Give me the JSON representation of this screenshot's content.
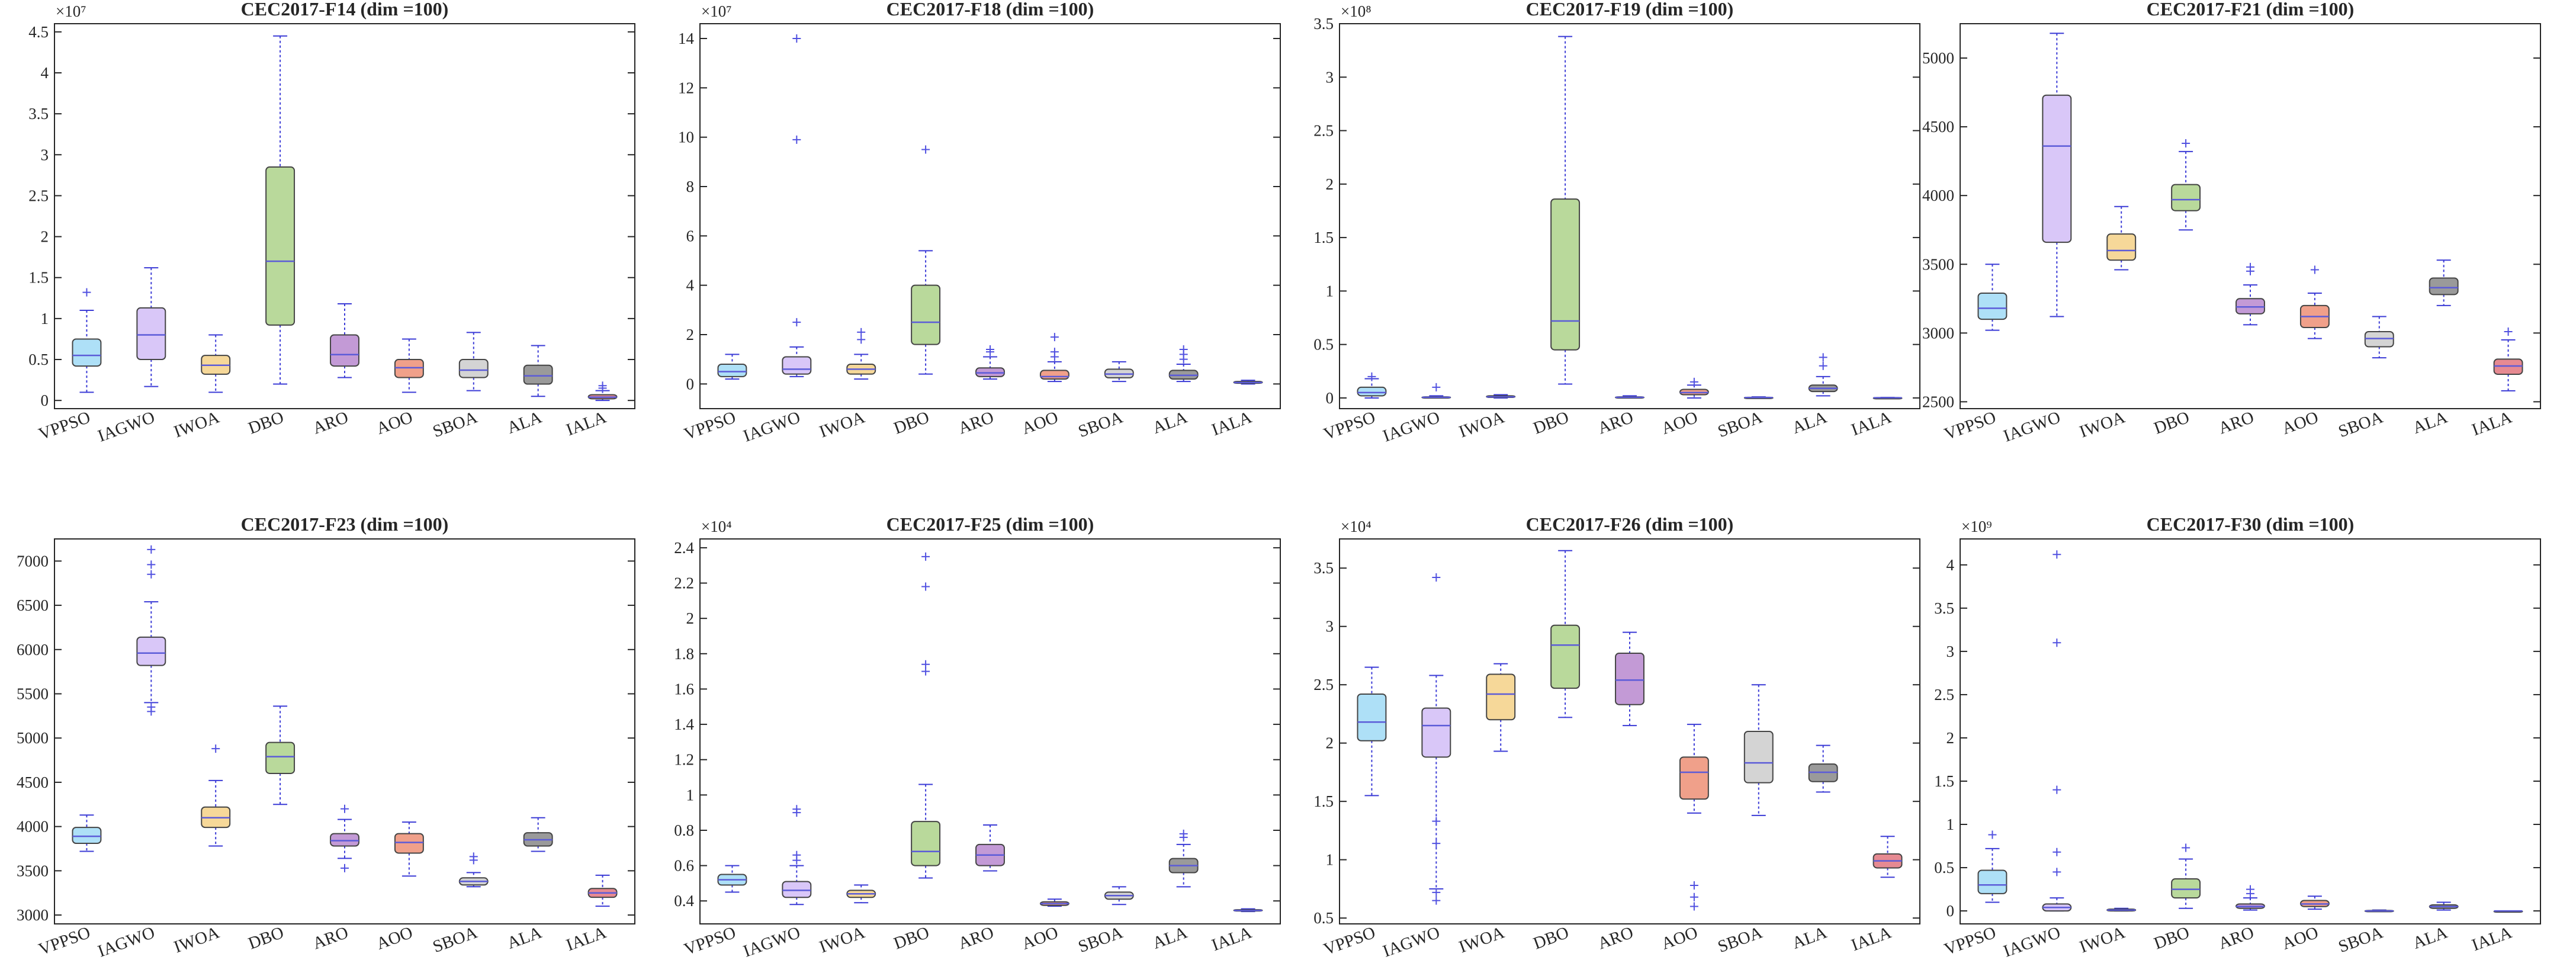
{
  "colors": {
    "VPPSO": "#aee0f7",
    "IAGWO": "#d9c7f8",
    "IWOA": "#f6d899",
    "DBO": "#b9d99b",
    "ARO": "#c39ad6",
    "AOO": "#f0a08a",
    "SBOA": "#d4d4d4",
    "ALA": "#9a9a9a",
    "IALA": "#e68a92"
  },
  "chart_data": [
    {
      "type": "box",
      "title": "CEC2017-F14 (dim =100)",
      "exponent": "×10⁷",
      "ylim": [
        -0.1,
        4.6
      ],
      "yticks": [
        0,
        0.5,
        1,
        1.5,
        2,
        2.5,
        3,
        3.5,
        4,
        4.5
      ],
      "ytick_labels": [
        "0",
        "0.5",
        "1",
        "1.5",
        "2",
        "2.5",
        "3",
        "3.5",
        "4",
        "4.5"
      ],
      "categories": [
        "VPPSO",
        "IAGWO",
        "IWOA",
        "DBO",
        "ARO",
        "AOO",
        "SBOA",
        "ALA",
        "IALA"
      ],
      "boxes": [
        {
          "min": 0.1,
          "q1": 0.42,
          "median": 0.55,
          "q3": 0.75,
          "max": 1.1,
          "outliers": [
            1.32
          ]
        },
        {
          "min": 0.17,
          "q1": 0.5,
          "median": 0.8,
          "q3": 1.13,
          "max": 1.62,
          "outliers": []
        },
        {
          "min": 0.1,
          "q1": 0.32,
          "median": 0.43,
          "q3": 0.55,
          "max": 0.8,
          "outliers": []
        },
        {
          "min": 0.2,
          "q1": 0.92,
          "median": 1.7,
          "q3": 2.85,
          "max": 4.45,
          "outliers": []
        },
        {
          "min": 0.28,
          "q1": 0.42,
          "median": 0.56,
          "q3": 0.8,
          "max": 1.18,
          "outliers": []
        },
        {
          "min": 0.1,
          "q1": 0.28,
          "median": 0.4,
          "q3": 0.5,
          "max": 0.75,
          "outliers": []
        },
        {
          "min": 0.12,
          "q1": 0.28,
          "median": 0.37,
          "q3": 0.5,
          "max": 0.83,
          "outliers": []
        },
        {
          "min": 0.05,
          "q1": 0.2,
          "median": 0.3,
          "q3": 0.43,
          "max": 0.67,
          "outliers": []
        },
        {
          "min": 0.0,
          "q1": 0.02,
          "median": 0.04,
          "q3": 0.07,
          "max": 0.12,
          "outliers": [
            0.15,
            0.18
          ]
        }
      ]
    },
    {
      "type": "box",
      "title": "CEC2017-F18 (dim =100)",
      "exponent": "×10⁷",
      "ylim": [
        -1.0,
        14.6
      ],
      "yticks": [
        0,
        2,
        4,
        6,
        8,
        10,
        12,
        14
      ],
      "ytick_labels": [
        "0",
        "2",
        "4",
        "6",
        "8",
        "10",
        "12",
        "14"
      ],
      "categories": [
        "VPPSO",
        "IAGWO",
        "IWOA",
        "DBO",
        "ARO",
        "AOO",
        "SBOA",
        "ALA",
        "IALA"
      ],
      "boxes": [
        {
          "min": 0.2,
          "q1": 0.3,
          "median": 0.5,
          "q3": 0.8,
          "max": 1.2,
          "outliers": []
        },
        {
          "min": 0.3,
          "q1": 0.4,
          "median": 0.6,
          "q3": 1.1,
          "max": 1.5,
          "outliers": [
            2.5,
            9.9,
            14.0
          ]
        },
        {
          "min": 0.2,
          "q1": 0.4,
          "median": 0.6,
          "q3": 0.8,
          "max": 1.2,
          "outliers": [
            1.8,
            2.1
          ]
        },
        {
          "min": 0.4,
          "q1": 1.6,
          "median": 2.5,
          "q3": 4.0,
          "max": 5.4,
          "outliers": [
            9.5
          ]
        },
        {
          "min": 0.2,
          "q1": 0.3,
          "median": 0.45,
          "q3": 0.65,
          "max": 1.1,
          "outliers": [
            1.3,
            1.4
          ]
        },
        {
          "min": 0.1,
          "q1": 0.2,
          "median": 0.3,
          "q3": 0.55,
          "max": 0.9,
          "outliers": [
            1.1,
            1.3,
            1.9
          ]
        },
        {
          "min": 0.1,
          "q1": 0.25,
          "median": 0.4,
          "q3": 0.6,
          "max": 0.9,
          "outliers": []
        },
        {
          "min": 0.1,
          "q1": 0.2,
          "median": 0.35,
          "q3": 0.55,
          "max": 0.8,
          "outliers": [
            1.0,
            1.2,
            1.4
          ]
        },
        {
          "min": 0.0,
          "q1": 0.03,
          "median": 0.06,
          "q3": 0.1,
          "max": 0.15,
          "outliers": []
        }
      ]
    },
    {
      "type": "box",
      "title": "CEC2017-F19 (dim =100)",
      "exponent": "×10⁸",
      "ylim": [
        -0.1,
        3.5
      ],
      "yticks": [
        0,
        0.5,
        1,
        1.5,
        2,
        2.5,
        3,
        3.5
      ],
      "ytick_labels": [
        "0",
        "0.5",
        "1",
        "1.5",
        "2",
        "2.5",
        "3",
        "3.5"
      ],
      "categories": [
        "VPPSO",
        "IAGWO",
        "IWOA",
        "DBO",
        "ARO",
        "AOO",
        "SBOA",
        "ALA",
        "IALA"
      ],
      "boxes": [
        {
          "min": 0.0,
          "q1": 0.02,
          "median": 0.05,
          "q3": 0.1,
          "max": 0.18,
          "outliers": [
            0.2
          ]
        },
        {
          "min": 0.0,
          "q1": 0.003,
          "median": 0.006,
          "q3": 0.01,
          "max": 0.02,
          "outliers": [
            0.1
          ]
        },
        {
          "min": 0.0,
          "q1": 0.005,
          "median": 0.01,
          "q3": 0.02,
          "max": 0.03,
          "outliers": []
        },
        {
          "min": 0.13,
          "q1": 0.45,
          "median": 0.72,
          "q3": 1.86,
          "max": 3.38,
          "outliers": []
        },
        {
          "min": 0.0,
          "q1": 0.003,
          "median": 0.006,
          "q3": 0.01,
          "max": 0.02,
          "outliers": []
        },
        {
          "min": 0.0,
          "q1": 0.03,
          "median": 0.05,
          "q3": 0.08,
          "max": 0.12,
          "outliers": [
            0.15
          ]
        },
        {
          "min": 0.0,
          "q1": 0.002,
          "median": 0.004,
          "q3": 0.006,
          "max": 0.01,
          "outliers": []
        },
        {
          "min": 0.02,
          "q1": 0.06,
          "median": 0.09,
          "q3": 0.12,
          "max": 0.2,
          "outliers": [
            0.3,
            0.38
          ]
        },
        {
          "min": 0.0,
          "q1": 0.001,
          "median": 0.002,
          "q3": 0.003,
          "max": 0.005,
          "outliers": []
        }
      ]
    },
    {
      "type": "box",
      "title": "CEC2017-F21 (dim =100)",
      "exponent": "",
      "ylim": [
        2450,
        5250
      ],
      "yticks": [
        2500,
        3000,
        3500,
        4000,
        4500,
        5000
      ],
      "ytick_labels": [
        "2500",
        "3000",
        "3500",
        "4000",
        "4500",
        "5000"
      ],
      "categories": [
        "VPPSO",
        "IAGWO",
        "IWOA",
        "DBO",
        "ARO",
        "AOO",
        "SBOA",
        "ALA",
        "IALA"
      ],
      "boxes": [
        {
          "min": 3020,
          "q1": 3100,
          "median": 3180,
          "q3": 3290,
          "max": 3500,
          "outliers": []
        },
        {
          "min": 3120,
          "q1": 3660,
          "median": 4360,
          "q3": 4730,
          "max": 5180,
          "outliers": []
        },
        {
          "min": 3460,
          "q1": 3530,
          "median": 3600,
          "q3": 3720,
          "max": 3920,
          "outliers": []
        },
        {
          "min": 3750,
          "q1": 3890,
          "median": 3970,
          "q3": 4080,
          "max": 4320,
          "outliers": [
            4380
          ]
        },
        {
          "min": 3060,
          "q1": 3140,
          "median": 3190,
          "q3": 3250,
          "max": 3350,
          "outliers": [
            3450,
            3480
          ]
        },
        {
          "min": 2960,
          "q1": 3040,
          "median": 3120,
          "q3": 3200,
          "max": 3290,
          "outliers": [
            3460
          ]
        },
        {
          "min": 2820,
          "q1": 2900,
          "median": 2960,
          "q3": 3010,
          "max": 3120,
          "outliers": []
        },
        {
          "min": 3200,
          "q1": 3280,
          "median": 3330,
          "q3": 3400,
          "max": 3530,
          "outliers": []
        },
        {
          "min": 2580,
          "q1": 2700,
          "median": 2760,
          "q3": 2810,
          "max": 2950,
          "outliers": [
            3010
          ]
        }
      ]
    },
    {
      "type": "box",
      "title": "CEC2017-F23 (dim =100)",
      "exponent": "",
      "ylim": [
        2900,
        7250
      ],
      "yticks": [
        3000,
        3500,
        4000,
        4500,
        5000,
        5500,
        6000,
        6500,
        7000
      ],
      "ytick_labels": [
        "3000",
        "3500",
        "4000",
        "4500",
        "5000",
        "5500",
        "6000",
        "6500",
        "7000"
      ],
      "categories": [
        "VPPSO",
        "IAGWO",
        "IWOA",
        "DBO",
        "ARO",
        "AOO",
        "SBOA",
        "ALA",
        "IALA"
      ],
      "boxes": [
        {
          "min": 3720,
          "q1": 3810,
          "median": 3890,
          "q3": 3990,
          "max": 4130,
          "outliers": []
        },
        {
          "min": 5400,
          "q1": 5820,
          "median": 5960,
          "q3": 6140,
          "max": 6540,
          "outliers": [
            5300,
            5350,
            6850,
            6960,
            7130
          ]
        },
        {
          "min": 3780,
          "q1": 3990,
          "median": 4100,
          "q3": 4220,
          "max": 4520,
          "outliers": [
            4880
          ]
        },
        {
          "min": 4250,
          "q1": 4600,
          "median": 4790,
          "q3": 4950,
          "max": 5360,
          "outliers": []
        },
        {
          "min": 3640,
          "q1": 3780,
          "median": 3840,
          "q3": 3920,
          "max": 4080,
          "outliers": [
            3530,
            4200
          ]
        },
        {
          "min": 3440,
          "q1": 3700,
          "median": 3820,
          "q3": 3920,
          "max": 4050,
          "outliers": []
        },
        {
          "min": 3320,
          "q1": 3340,
          "median": 3380,
          "q3": 3420,
          "max": 3480,
          "outliers": [
            3620,
            3660
          ]
        },
        {
          "min": 3720,
          "q1": 3780,
          "median": 3850,
          "q3": 3930,
          "max": 4100,
          "outliers": []
        },
        {
          "min": 3100,
          "q1": 3200,
          "median": 3250,
          "q3": 3300,
          "max": 3450,
          "outliers": []
        }
      ]
    },
    {
      "type": "box",
      "title": "CEC2017-F25 (dim =100)",
      "exponent": "×10⁴",
      "ylim": [
        0.27,
        2.45
      ],
      "yticks": [
        0.4,
        0.6,
        0.8,
        1,
        1.2,
        1.4,
        1.6,
        1.8,
        2,
        2.2,
        2.4
      ],
      "ytick_labels": [
        "0.4",
        "0.6",
        "0.8",
        "1",
        "1.2",
        "1.4",
        "1.6",
        "1.8",
        "2",
        "2.2",
        "2.4"
      ],
      "categories": [
        "VPPSO",
        "IAGWO",
        "IWOA",
        "DBO",
        "ARO",
        "AOO",
        "SBOA",
        "ALA",
        "IALA"
      ],
      "boxes": [
        {
          "min": 0.45,
          "q1": 0.49,
          "median": 0.52,
          "q3": 0.55,
          "max": 0.6,
          "outliers": []
        },
        {
          "min": 0.38,
          "q1": 0.42,
          "median": 0.46,
          "q3": 0.51,
          "max": 0.6,
          "outliers": [
            0.63,
            0.66,
            0.9,
            0.92
          ]
        },
        {
          "min": 0.39,
          "q1": 0.42,
          "median": 0.44,
          "q3": 0.46,
          "max": 0.49,
          "outliers": []
        },
        {
          "min": 0.53,
          "q1": 0.6,
          "median": 0.68,
          "q3": 0.85,
          "max": 1.06,
          "outliers": [
            1.7,
            1.74,
            2.18,
            2.35
          ]
        },
        {
          "min": 0.57,
          "q1": 0.6,
          "median": 0.66,
          "q3": 0.72,
          "max": 0.83,
          "outliers": []
        },
        {
          "min": 0.37,
          "q1": 0.375,
          "median": 0.385,
          "q3": 0.395,
          "max": 0.41,
          "outliers": []
        },
        {
          "min": 0.38,
          "q1": 0.41,
          "median": 0.43,
          "q3": 0.45,
          "max": 0.48,
          "outliers": []
        },
        {
          "min": 0.48,
          "q1": 0.56,
          "median": 0.6,
          "q3": 0.64,
          "max": 0.72,
          "outliers": [
            0.76,
            0.78
          ]
        },
        {
          "min": 0.34,
          "q1": 0.343,
          "median": 0.346,
          "q3": 0.35,
          "max": 0.355,
          "outliers": []
        }
      ]
    },
    {
      "type": "box",
      "title": "CEC2017-F26 (dim =100)",
      "exponent": "×10⁴",
      "ylim": [
        0.45,
        3.75
      ],
      "yticks": [
        0.5,
        1,
        1.5,
        2,
        2.5,
        3,
        3.5
      ],
      "ytick_labels": [
        "0.5",
        "1",
        "1.5",
        "2",
        "2.5",
        "3",
        "3.5"
      ],
      "categories": [
        "VPPSO",
        "IAGWO",
        "IWOA",
        "DBO",
        "ARO",
        "AOO",
        "SBOA",
        "ALA",
        "IALA"
      ],
      "boxes": [
        {
          "min": 1.55,
          "q1": 2.02,
          "median": 2.18,
          "q3": 2.42,
          "max": 2.65,
          "outliers": []
        },
        {
          "min": 0.75,
          "q1": 1.88,
          "median": 2.15,
          "q3": 2.3,
          "max": 2.58,
          "outliers": [
            0.65,
            0.72,
            1.14,
            1.33,
            3.42
          ]
        },
        {
          "min": 1.93,
          "q1": 2.2,
          "median": 2.42,
          "q3": 2.59,
          "max": 2.68,
          "outliers": []
        },
        {
          "min": 2.22,
          "q1": 2.47,
          "median": 2.84,
          "q3": 3.01,
          "max": 3.65,
          "outliers": []
        },
        {
          "min": 2.15,
          "q1": 2.33,
          "median": 2.54,
          "q3": 2.77,
          "max": 2.95,
          "outliers": []
        },
        {
          "min": 1.4,
          "q1": 1.52,
          "median": 1.75,
          "q3": 1.88,
          "max": 2.16,
          "outliers": [
            0.6,
            0.68,
            0.78
          ]
        },
        {
          "min": 1.38,
          "q1": 1.66,
          "median": 1.83,
          "q3": 2.1,
          "max": 2.5,
          "outliers": []
        },
        {
          "min": 1.58,
          "q1": 1.67,
          "median": 1.75,
          "q3": 1.82,
          "max": 1.98,
          "outliers": []
        },
        {
          "min": 0.85,
          "q1": 0.93,
          "median": 0.99,
          "q3": 1.05,
          "max": 1.2,
          "outliers": []
        }
      ]
    },
    {
      "type": "box",
      "title": "CEC2017-F30 (dim =100)",
      "exponent": "×10⁹",
      "ylim": [
        -0.15,
        4.3
      ],
      "yticks": [
        0,
        0.5,
        1,
        1.5,
        2,
        2.5,
        3,
        3.5,
        4
      ],
      "ytick_labels": [
        "0",
        "0.5",
        "1",
        "1.5",
        "2",
        "2.5",
        "3",
        "3.5",
        "4"
      ],
      "categories": [
        "VPPSO",
        "IAGWO",
        "IWOA",
        "DBO",
        "ARO",
        "AOO",
        "SBOA",
        "ALA",
        "IALA"
      ],
      "boxes": [
        {
          "min": 0.1,
          "q1": 0.2,
          "median": 0.3,
          "q3": 0.47,
          "max": 0.72,
          "outliers": [
            0.88
          ]
        },
        {
          "min": 0.0,
          "q1": 0.0,
          "median": 0.04,
          "q3": 0.08,
          "max": 0.15,
          "outliers": [
            0.45,
            0.68,
            1.4,
            3.1,
            4.12
          ]
        },
        {
          "min": 0.0,
          "q1": 0.0,
          "median": 0.01,
          "q3": 0.02,
          "max": 0.03,
          "outliers": []
        },
        {
          "min": 0.03,
          "q1": 0.15,
          "median": 0.25,
          "q3": 0.37,
          "max": 0.6,
          "outliers": [
            0.73
          ]
        },
        {
          "min": 0.01,
          "q1": 0.03,
          "median": 0.05,
          "q3": 0.08,
          "max": 0.15,
          "outliers": [
            0.2,
            0.25
          ]
        },
        {
          "min": 0.02,
          "q1": 0.05,
          "median": 0.08,
          "q3": 0.12,
          "max": 0.17,
          "outliers": []
        },
        {
          "min": 0.0,
          "q1": 0.0,
          "median": 0.0,
          "q3": 0.005,
          "max": 0.01,
          "outliers": []
        },
        {
          "min": 0.01,
          "q1": 0.03,
          "median": 0.05,
          "q3": 0.07,
          "max": 0.1,
          "outliers": []
        },
        {
          "min": 0.0,
          "q1": 0.0,
          "median": 0.0,
          "q3": 0.0,
          "max": 0.0,
          "outliers": []
        }
      ]
    }
  ]
}
